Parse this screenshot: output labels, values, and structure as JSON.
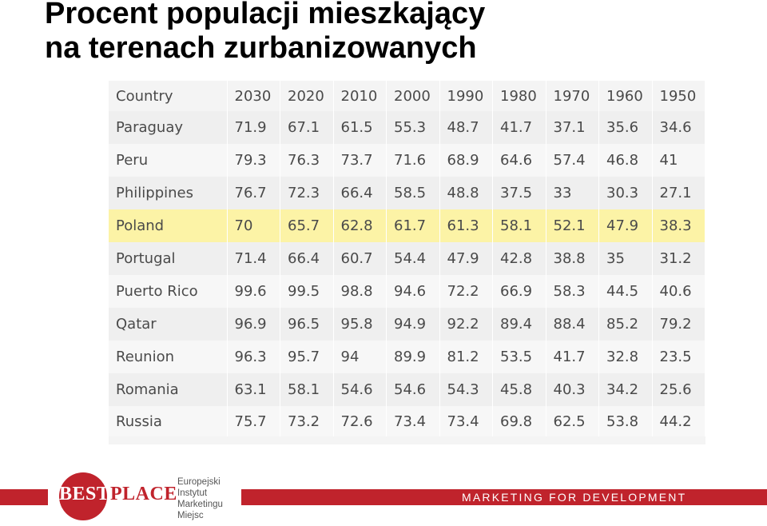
{
  "title": {
    "line1": "Procent populacji mieszkający",
    "line2": "na terenach zurbanizowanych"
  },
  "table": {
    "columns": [
      "Country",
      "2030",
      "2020",
      "2010",
      "2000",
      "1990",
      "1980",
      "1970",
      "1960",
      "1950"
    ],
    "rows": [
      [
        "Paraguay",
        "71.9",
        "67.1",
        "61.5",
        "55.3",
        "48.7",
        "41.7",
        "37.1",
        "35.6",
        "34.6"
      ],
      [
        "Peru",
        "79.3",
        "76.3",
        "73.7",
        "71.6",
        "68.9",
        "64.6",
        "57.4",
        "46.8",
        "41"
      ],
      [
        "Philippines",
        "76.7",
        "72.3",
        "66.4",
        "58.5",
        "48.8",
        "37.5",
        "33",
        "30.3",
        "27.1"
      ],
      [
        "Poland",
        "70",
        "65.7",
        "62.8",
        "61.7",
        "61.3",
        "58.1",
        "52.1",
        "47.9",
        "38.3"
      ],
      [
        "Portugal",
        "71.4",
        "66.4",
        "60.7",
        "54.4",
        "47.9",
        "42.8",
        "38.8",
        "35",
        "31.2"
      ],
      [
        "Puerto Rico",
        "99.6",
        "99.5",
        "98.8",
        "94.6",
        "72.2",
        "66.9",
        "58.3",
        "44.5",
        "40.6"
      ],
      [
        "Qatar",
        "96.9",
        "96.5",
        "95.8",
        "94.9",
        "92.2",
        "89.4",
        "88.4",
        "85.2",
        "79.2"
      ],
      [
        "Reunion",
        "96.3",
        "95.7",
        "94",
        "89.9",
        "81.2",
        "53.5",
        "41.7",
        "32.8",
        "23.5"
      ],
      [
        "Romania",
        "63.1",
        "58.1",
        "54.6",
        "54.6",
        "54.3",
        "45.8",
        "40.3",
        "34.2",
        "25.6"
      ],
      [
        "Russia",
        "75.7",
        "73.2",
        "72.6",
        "73.4",
        "73.4",
        "69.8",
        "62.5",
        "53.8",
        "44.2"
      ]
    ],
    "highlighted_row": "Poland",
    "highlight_color": "#fcf3a6"
  },
  "footer": {
    "logo_best": "BEST",
    "logo_place": "PLACE",
    "institute_lines": [
      "Europejski",
      "Instytut",
      "Marketingu",
      "Miejsc"
    ],
    "tagline": "MARKETING FOR DEVELOPMENT",
    "brand_color": "#c0232c"
  }
}
